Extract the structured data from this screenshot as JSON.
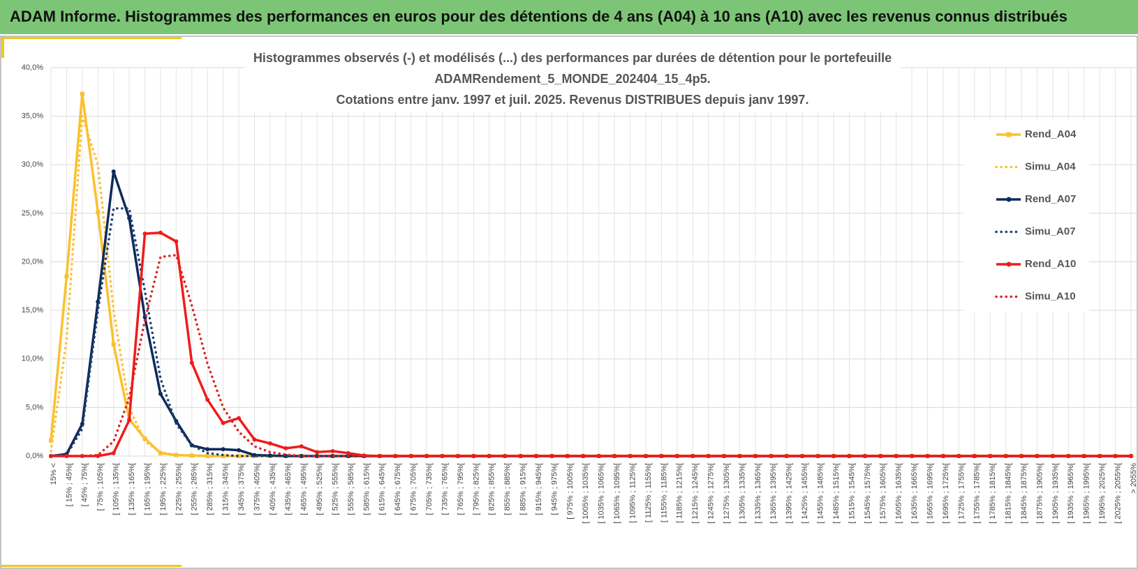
{
  "page_title": "ADAM Informe. Histogrammes des performances en euros pour des détentions de 4 ans (A04) à 10 ans (A10) avec les revenus connus distribués",
  "chart_data": {
    "type": "line",
    "title_lines": [
      "Histogrammes observés (-) et modélisés (...) des performances par durées de détention pour  le portefeuille",
      "ADAMRendement_5_MONDE_202404_15_4p5.",
      "Cotations entre janv. 1997 et juil. 2025. Revenus DISTRIBUES depuis janv 1997."
    ],
    "categories": [
      "15% <",
      "[ 15% ; 45%[",
      "[ 45% ; 75%[",
      "[ 75% ; 105%[",
      "[ 105% ; 135%[",
      "[ 135% ; 165%[",
      "[ 165% ; 195%[",
      "[ 195% ; 225%[",
      "[ 225% ; 255%[",
      "[ 255% ; 285%[",
      "[ 285% ; 315%[",
      "[ 315% ; 345%[",
      "[ 345% ; 375%[",
      "[ 375% ; 405%[",
      "[ 405% ; 435%[",
      "[ 435% ; 465%[",
      "[ 465% ; 495%[",
      "[ 495% ; 525%[",
      "[ 525% ; 555%[",
      "[ 555% ; 585%[",
      "[ 585% ; 615%[",
      "[ 615% ; 645%[",
      "[ 645% ; 675%[",
      "[ 675% ; 705%[",
      "[ 705% ; 735%[",
      "[ 735% ; 765%[",
      "[ 765% ; 795%[",
      "[ 795% ; 825%[",
      "[ 825% ; 855%[",
      "[ 855% ; 885%[",
      "[ 885% ; 915%[",
      "[ 915% ; 945%[",
      "[ 945% ; 975%[",
      "[ 975% ; 1005%[",
      "[ 1005% ; 1035%[",
      "[ 1035% ; 1065%[",
      "[ 1065% ; 1095%[",
      "[ 1095% ; 1125%[",
      "[ 1125% ; 1155%[",
      "[ 1155% ; 1185%[",
      "[ 1185% ; 1215%[",
      "[ 1215% ; 1245%[",
      "[ 1245% ; 1275%[",
      "[ 1275% ; 1305%[",
      "[ 1305% ; 1335%[",
      "[ 1335% ; 1365%[",
      "[ 1365% ; 1395%[",
      "[ 1395% ; 1425%[",
      "[ 1425% ; 1455%[",
      "[ 1455% ; 1485%[",
      "[ 1485% ; 1515%[",
      "[ 1515% ; 1545%[",
      "[ 1545% ; 1575%[",
      "[ 1575% ; 1605%[",
      "[ 1605% ; 1635%[",
      "[ 1635% ; 1665%[",
      "[ 1665% ; 1695%[",
      "[ 1695% ; 1725%[",
      "[ 1725% ; 1755%[",
      "[ 1755% ; 1785%[",
      "[ 1785% ; 1815%[",
      "[ 1815% ; 1845%[",
      "[ 1845% ; 1875%[",
      "[ 1875% ; 1905%[",
      "[ 1905% ; 1935%[",
      "[ 1935% ; 1965%[",
      "[ 1965% ; 1995%[",
      "[ 1995% ; 2025%[",
      "[ 2025% ; 2055%[",
      "> 2055%"
    ],
    "series": [
      {
        "name": "Rend_A04",
        "color": "#fbc02d",
        "style": "solid",
        "marker": "square",
        "values": [
          1.6,
          18.5,
          37.3,
          25.1,
          11.5,
          3.8,
          1.8,
          0.3,
          0.1,
          0.05,
          0,
          0,
          0,
          0,
          0,
          0,
          0,
          0,
          0,
          0,
          0,
          0,
          0,
          0,
          0,
          0,
          0,
          0,
          0,
          0,
          0,
          0,
          0,
          0,
          0,
          0,
          0,
          0,
          0,
          0,
          0,
          0,
          0,
          0,
          0,
          0,
          0,
          0,
          0,
          0,
          0,
          0,
          0,
          0,
          0,
          0,
          0,
          0,
          0,
          0,
          0,
          0,
          0,
          0,
          0,
          0,
          0,
          0,
          0,
          0
        ]
      },
      {
        "name": "Simu_A04",
        "color": "#fbc02d",
        "style": "dotted",
        "marker": "none",
        "values": [
          0.5,
          12,
          35,
          30,
          15,
          5,
          1.5,
          0.4,
          0.1,
          0,
          0,
          0,
          0,
          0,
          0,
          0,
          0,
          0,
          0,
          0,
          0,
          0,
          0,
          0,
          0,
          0,
          0,
          0,
          0,
          0,
          0,
          0,
          0,
          0,
          0,
          0,
          0,
          0,
          0,
          0,
          0,
          0,
          0,
          0,
          0,
          0,
          0,
          0,
          0,
          0,
          0,
          0,
          0,
          0,
          0,
          0,
          0,
          0,
          0,
          0,
          0,
          0,
          0,
          0,
          0,
          0,
          0,
          0,
          0,
          0
        ]
      },
      {
        "name": "Rend_A07",
        "color": "#0d2a5c",
        "style": "solid",
        "marker": "circle",
        "values": [
          0,
          0.2,
          3.3,
          15.9,
          29.3,
          24.5,
          14.3,
          6.4,
          3.6,
          1.1,
          0.7,
          0.7,
          0.6,
          0.1,
          0.05,
          0,
          0,
          0,
          0,
          0,
          0,
          0,
          0,
          0,
          0,
          0,
          0,
          0,
          0,
          0,
          0,
          0,
          0,
          0,
          0,
          0,
          0,
          0,
          0,
          0,
          0,
          0,
          0,
          0,
          0,
          0,
          0,
          0,
          0,
          0,
          0,
          0,
          0,
          0,
          0,
          0,
          0,
          0,
          0,
          0,
          0,
          0,
          0,
          0,
          0,
          0,
          0,
          0,
          0,
          0
        ]
      },
      {
        "name": "Simu_A07",
        "color": "#1f3f6e",
        "style": "dotted",
        "marker": "none",
        "values": [
          0,
          0.1,
          2.8,
          15,
          25.5,
          25.5,
          17,
          8,
          3.3,
          1.1,
          0.3,
          0.1,
          0,
          0,
          0,
          0,
          0,
          0,
          0,
          0,
          0,
          0,
          0,
          0,
          0,
          0,
          0,
          0,
          0,
          0,
          0,
          0,
          0,
          0,
          0,
          0,
          0,
          0,
          0,
          0,
          0,
          0,
          0,
          0,
          0,
          0,
          0,
          0,
          0,
          0,
          0,
          0,
          0,
          0,
          0,
          0,
          0,
          0,
          0,
          0,
          0,
          0,
          0,
          0,
          0,
          0,
          0,
          0,
          0,
          0
        ]
      },
      {
        "name": "Rend_A10",
        "color": "#ee1c1c",
        "style": "solid",
        "marker": "circle",
        "values": [
          0,
          0,
          0,
          0,
          0.3,
          3.7,
          22.9,
          23.0,
          22.1,
          9.6,
          5.8,
          3.4,
          3.9,
          1.7,
          1.3,
          0.8,
          1.0,
          0.4,
          0.5,
          0.3,
          0.05,
          0,
          0,
          0,
          0,
          0,
          0,
          0,
          0,
          0,
          0,
          0,
          0,
          0,
          0,
          0,
          0,
          0,
          0,
          0,
          0,
          0,
          0,
          0,
          0,
          0,
          0,
          0,
          0,
          0,
          0,
          0,
          0,
          0,
          0,
          0,
          0,
          0,
          0,
          0,
          0,
          0,
          0,
          0,
          0,
          0,
          0,
          0,
          0,
          0
        ]
      },
      {
        "name": "Simu_A10",
        "color": "#e0201c",
        "style": "dotted",
        "marker": "none",
        "values": [
          0,
          0,
          0,
          0.1,
          1.5,
          6,
          14,
          20.5,
          20.7,
          15.5,
          9.5,
          5,
          2.5,
          1.0,
          0.4,
          0.15,
          0,
          0,
          0,
          0,
          0,
          0,
          0,
          0,
          0,
          0,
          0,
          0,
          0,
          0,
          0,
          0,
          0,
          0,
          0,
          0,
          0,
          0,
          0,
          0,
          0,
          0,
          0,
          0,
          0,
          0,
          0,
          0,
          0,
          0,
          0,
          0,
          0,
          0,
          0,
          0,
          0,
          0,
          0,
          0,
          0,
          0,
          0,
          0,
          0,
          0,
          0,
          0,
          0,
          0
        ]
      }
    ],
    "ylim": [
      0,
      40
    ],
    "yticks": [
      {
        "value": 0,
        "label": "0,0%"
      },
      {
        "value": 5,
        "label": "5,0%"
      },
      {
        "value": 10,
        "label": "10,0%"
      },
      {
        "value": 15,
        "label": "15,0%"
      },
      {
        "value": 20,
        "label": "20,0%"
      },
      {
        "value": 25,
        "label": "25,0%"
      },
      {
        "value": 30,
        "label": "30,0%"
      },
      {
        "value": 35,
        "label": "35,0%"
      },
      {
        "value": 40,
        "label": "40,0%"
      }
    ],
    "grid": true,
    "legend": "right"
  }
}
